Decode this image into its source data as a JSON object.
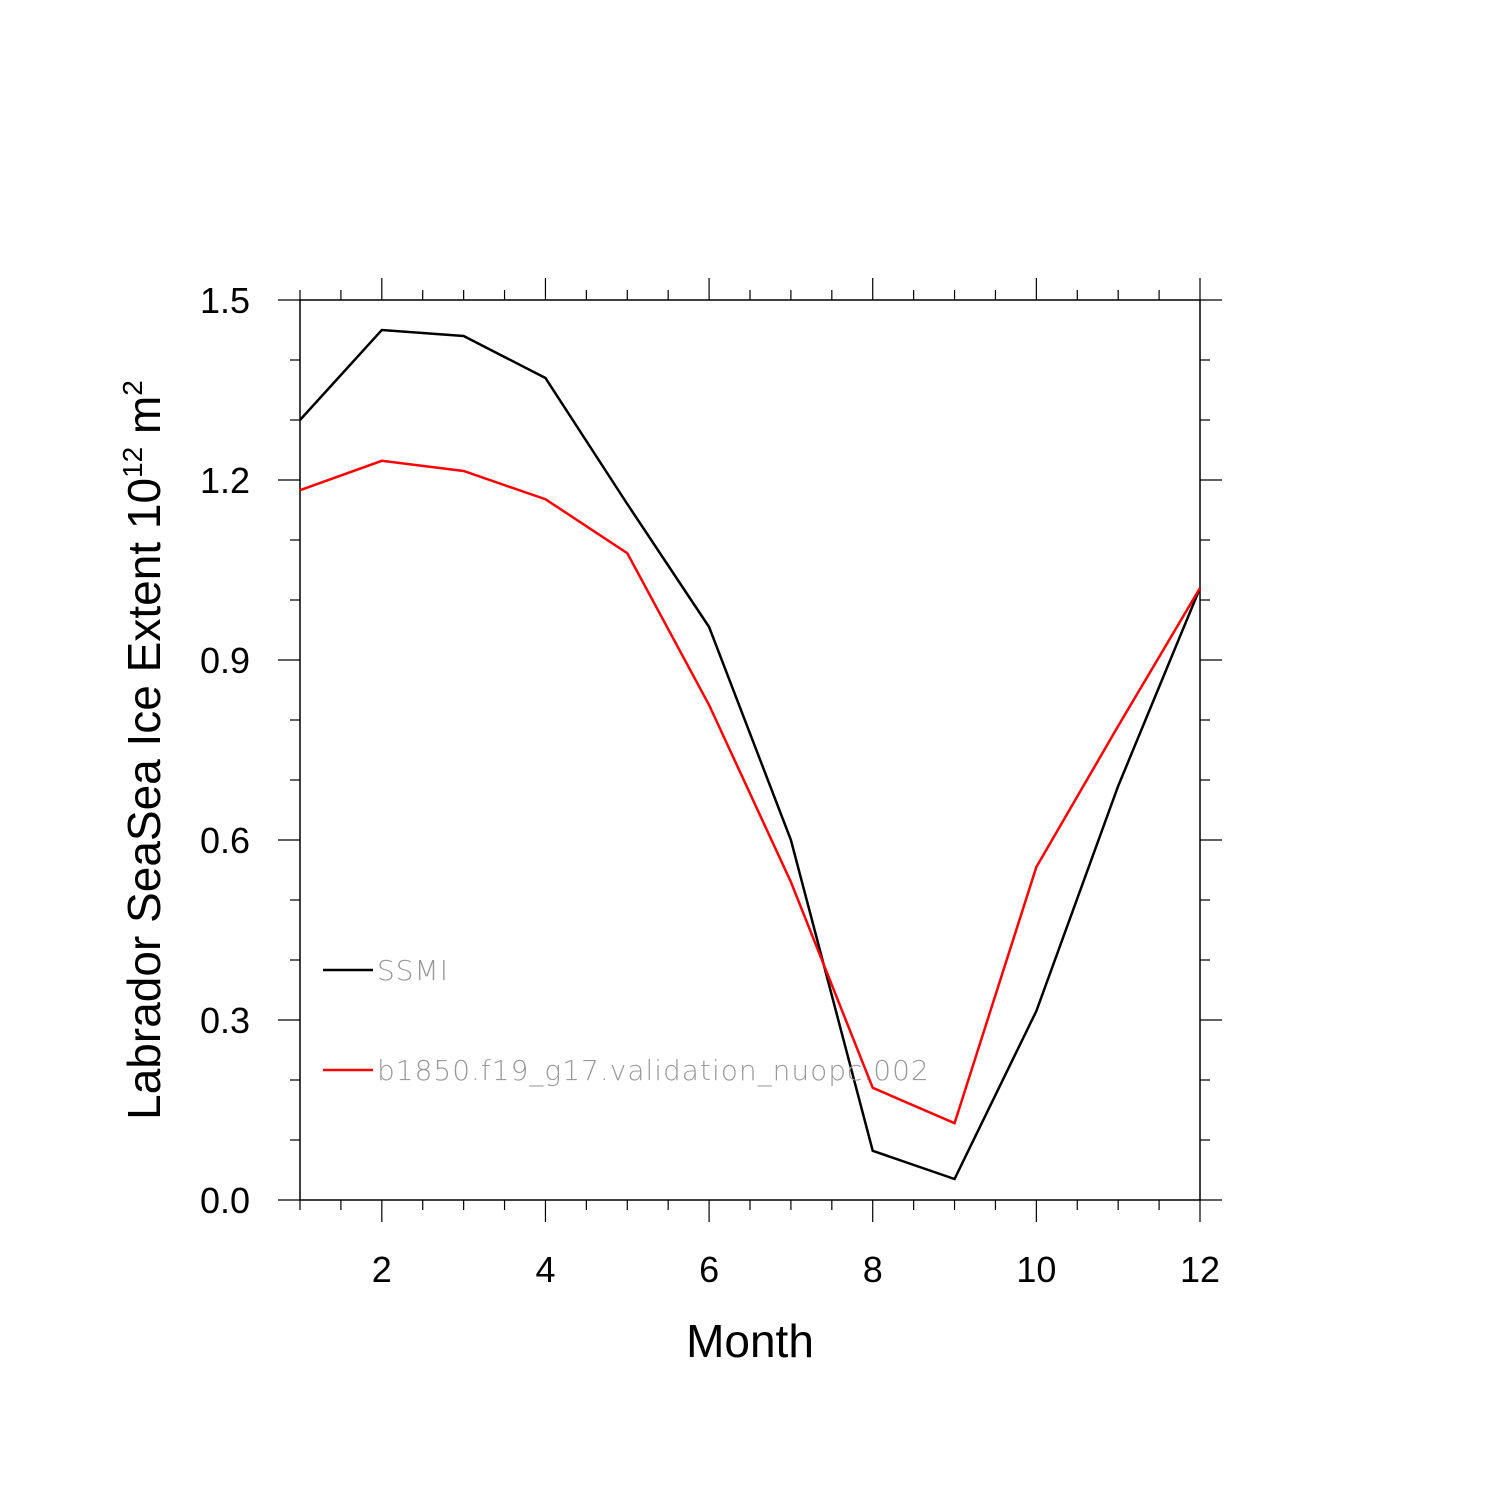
{
  "chart_data": {
    "type": "line",
    "title": "",
    "xlabel": "Month",
    "ylabel": {
      "main": "Labrador SeaSea Ice Extent 10",
      "sup": "12",
      "unit": " m",
      "unit_sup": "2"
    },
    "xlim": [
      1,
      12
    ],
    "ylim": [
      0.0,
      1.5
    ],
    "xticks": [
      "2",
      "4",
      "6",
      "8",
      "10",
      "12"
    ],
    "yticks": [
      "0.0",
      "0.3",
      "0.6",
      "0.9",
      "1.2",
      "1.5"
    ],
    "x": [
      1,
      2,
      3,
      4,
      5,
      6,
      7,
      8,
      9,
      10,
      11,
      12
    ],
    "series": [
      {
        "name": "SSMI",
        "color": "#000000",
        "values": [
          1.3,
          1.45,
          1.44,
          1.37,
          1.16,
          0.955,
          0.6,
          0.082,
          0.035,
          0.315,
          0.69,
          1.02
        ]
      },
      {
        "name": "b1850.f19_g17.validation_nuopc.002",
        "color": "#ff0000",
        "values": [
          1.183,
          1.232,
          1.215,
          1.168,
          1.078,
          0.825,
          0.53,
          0.187,
          0.128,
          0.555,
          0.79,
          1.02
        ]
      }
    ],
    "legend_position": "lower-left",
    "grid": false
  }
}
